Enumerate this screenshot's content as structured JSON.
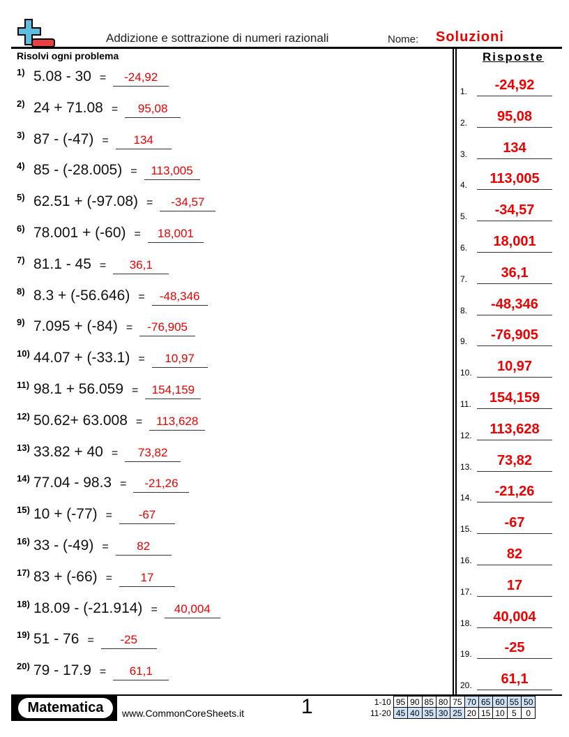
{
  "header": {
    "title": "Addizione e sottrazione di numeri razionali",
    "name_label": "Nome:",
    "name_value": "Soluzioni",
    "instructions": "Risolvi ogni problema",
    "answers_heading": "Risposte",
    "logo_icon": "plus-minus-icon"
  },
  "problems": [
    {
      "num": "1)",
      "expr": "5.08 - 30",
      "answer": "-24,92"
    },
    {
      "num": "2)",
      "expr": "24 + 71.08",
      "answer": "95,08"
    },
    {
      "num": "3)",
      "expr": "87 - (-47)",
      "answer": "134"
    },
    {
      "num": "4)",
      "expr": "85 - (-28.005)",
      "answer": "113,005"
    },
    {
      "num": "5)",
      "expr": "62.51 + (-97.08)",
      "answer": "-34,57"
    },
    {
      "num": "6)",
      "expr": "78.001 + (-60)",
      "answer": "18,001"
    },
    {
      "num": "7)",
      "expr": "81.1 - 45",
      "answer": "36,1"
    },
    {
      "num": "8)",
      "expr": "8.3 + (-56.646)",
      "answer": "-48,346"
    },
    {
      "num": "9)",
      "expr": "7.095 + (-84)",
      "answer": "-76,905"
    },
    {
      "num": "10)",
      "expr": "44.07 + (-33.1)",
      "answer": "10,97"
    },
    {
      "num": "11)",
      "expr": "98.1 + 56.059",
      "answer": "154,159"
    },
    {
      "num": "12)",
      "expr": "50.62+ 63.008",
      "answer": "113,628"
    },
    {
      "num": "13)",
      "expr": "33.82 + 40",
      "answer": "73,82"
    },
    {
      "num": "14)",
      "expr": "77.04 - 98.3",
      "answer": "-21,26"
    },
    {
      "num": "15)",
      "expr": "10 + (-77)",
      "answer": "-67"
    },
    {
      "num": "16)",
      "expr": "33 - (-49)",
      "answer": "82"
    },
    {
      "num": "17)",
      "expr": "83 + (-66)",
      "answer": "17"
    },
    {
      "num": "18)",
      "expr": "18.09 - (-21.914)",
      "answer": "40,004"
    },
    {
      "num": "19)",
      "expr": "51 - 76",
      "answer": "-25"
    },
    {
      "num": "20)",
      "expr": "79 - 17.9",
      "answer": "61,1"
    }
  ],
  "equals": "=",
  "answer_key_labels": [
    "1.",
    "2.",
    "3.",
    "4.",
    "5.",
    "6.",
    "7.",
    "8.",
    "9.",
    "10.",
    "11.",
    "12.",
    "13.",
    "14.",
    "15.",
    "16.",
    "17.",
    "18.",
    "19.",
    "20."
  ],
  "footer": {
    "brand": "Matematica",
    "site": "www.CommonCoreSheets.it",
    "page": "1",
    "score_rows": [
      {
        "label": "1-10",
        "values": [
          "95",
          "90",
          "85",
          "80",
          "75",
          "70",
          "65",
          "60",
          "55",
          "50"
        ],
        "highlight": [
          false,
          false,
          false,
          false,
          false,
          true,
          true,
          true,
          true,
          true
        ]
      },
      {
        "label": "11-20",
        "values": [
          "45",
          "40",
          "35",
          "30",
          "25",
          "20",
          "15",
          "10",
          "5",
          "0"
        ],
        "highlight": [
          true,
          true,
          true,
          true,
          true,
          false,
          false,
          false,
          false,
          false
        ]
      }
    ]
  },
  "colors": {
    "answer": "#ee0000",
    "logo_plus": "#5bbfe0",
    "logo_minus": "#e84040",
    "score_highlight": "#cfe2f7"
  }
}
